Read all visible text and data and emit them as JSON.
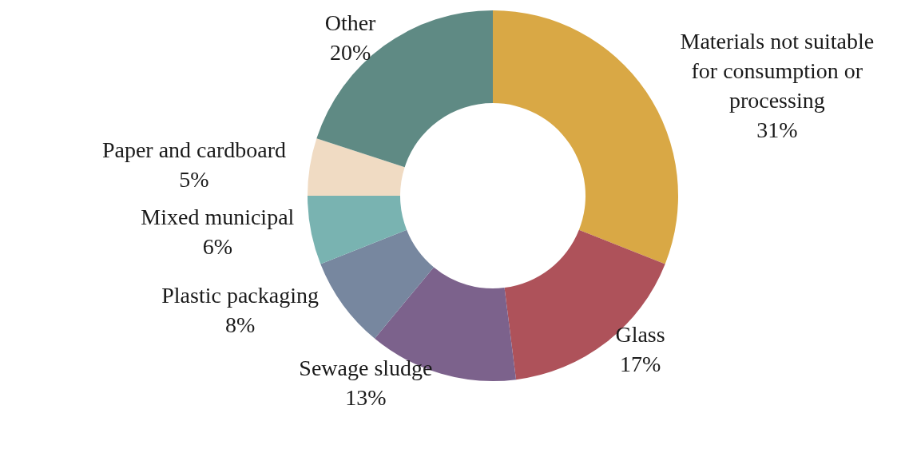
{
  "chart_data": {
    "type": "donut",
    "categories": [
      "Materials not suitable for consumption or processing",
      "Glass",
      "Sewage sludge",
      "Plastic packaging",
      "Mixed municipal",
      "Paper and cardboard",
      "Other"
    ],
    "values": [
      31,
      17,
      13,
      8,
      6,
      5,
      20
    ],
    "value_labels": [
      "31%",
      "17%",
      "13%",
      "8%",
      "6%",
      "5%",
      "20%"
    ],
    "colors": [
      "#d9a845",
      "#ae525a",
      "#7c628c",
      "#77879f",
      "#79b3b1",
      "#f0dbc3",
      "#5f8a84"
    ]
  }
}
